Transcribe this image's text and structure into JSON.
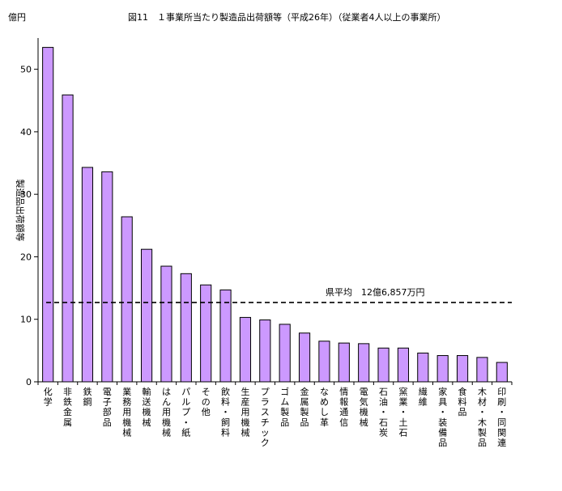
{
  "chart_data": {
    "type": "bar",
    "title": "図11　１事業所当たり製造品出荷額等（平成26年）（従業者4人以上の事業所）",
    "unit_label": "億円",
    "ylabel": "製造品出荷額等",
    "ylim": [
      0,
      55
    ],
    "yticks": [
      0,
      10,
      20,
      30,
      40,
      50
    ],
    "grid": false,
    "legend": "none",
    "bar_color": "#cc99ff",
    "bar_border": "#000000",
    "categories": [
      "化学",
      "非鉄金属",
      "鉄鋼",
      "電子部品",
      "業務用機械",
      "輸送機械",
      "はん用機械",
      "パルプ・紙",
      "その他",
      "飲料・飼料",
      "生産用機械",
      "プラスチック",
      "ゴム製品",
      "金属製品",
      "なめし革",
      "情報通信",
      "電気機械",
      "石油・石炭",
      "窯業・土石",
      "繊維",
      "家具・装備品",
      "食料品",
      "木材・木製品",
      "印刷・同関連"
    ],
    "values": [
      53.5,
      45.9,
      34.3,
      33.6,
      26.4,
      21.2,
      18.5,
      17.3,
      15.5,
      14.7,
      10.3,
      9.9,
      9.2,
      7.8,
      6.5,
      6.2,
      6.1,
      5.4,
      5.4,
      4.6,
      4.2,
      4.2,
      3.9,
      3.1
    ],
    "average": {
      "label": "県平均　12億6,857万円",
      "value": 12.6857
    }
  }
}
